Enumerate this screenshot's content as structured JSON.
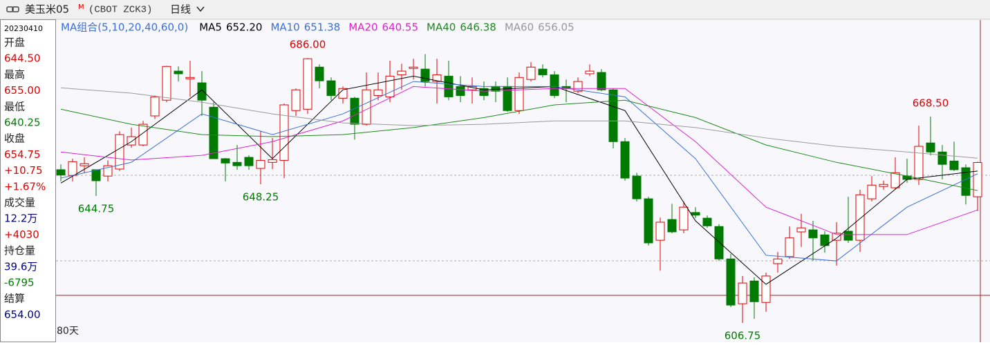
{
  "header": {
    "title": "美玉米05",
    "badge": "M",
    "code": "(CBOT ZCK3)",
    "period": "日线"
  },
  "quote": {
    "date": "20230410",
    "items": [
      {
        "text": "开盘"
      },
      {
        "text": "644.50",
        "color": "#e00000"
      },
      {
        "text": "最高"
      },
      {
        "text": "655.00",
        "color": "#e00000"
      },
      {
        "text": "最低"
      },
      {
        "text": "640.25",
        "color": "#008000"
      },
      {
        "text": "收盘"
      },
      {
        "text": "654.75",
        "color": "#e00000"
      },
      {
        "text": "+10.75",
        "color": "#e00000"
      },
      {
        "text": "+1.67%",
        "color": "#e00000"
      },
      {
        "text": "成交量"
      },
      {
        "text": "12.2万",
        "color": "#000080"
      },
      {
        "text": "+4030",
        "color": "#e00000"
      },
      {
        "text": "持仓量"
      },
      {
        "text": "39.6万",
        "color": "#000080"
      },
      {
        "text": "-6795",
        "color": "#008000"
      },
      {
        "text": "结算"
      },
      {
        "text": "654.00",
        "color": "#000080"
      }
    ]
  },
  "chart_data": {
    "type": "candlestick",
    "legend_title": "MA组合(5,10,20,40,60,0)",
    "span_label": "80天",
    "ylim": [
      601.8,
      697.6
    ],
    "up_color": "#e00000",
    "down_color": "#007a00",
    "open": [
      652.6,
      650.9,
      653.8,
      652.6,
      650.7,
      652.8,
      660.0,
      660.0,
      668.7,
      673.4,
      682.1,
      679.8,
      678.6,
      671.3,
      655.9,
      654.8,
      656.3,
      653.0,
      654.8,
      655.4,
      670.3,
      670.7,
      683.3,
      679.2,
      674.0,
      674.0,
      666.2,
      674.8,
      674.4,
      681.0,
      682.9,
      682.7,
      679.0,
      680.6,
      677.5,
      676.5,
      676.9,
      677.5,
      677.5,
      670.3,
      679.6,
      682.7,
      681.0,
      677.5,
      676.1,
      681.3,
      681.7,
      676.5,
      661.0,
      650.7,
      643.9,
      631.5,
      637.7,
      634.6,
      639.8,
      638.1,
      635.6,
      625.9,
      612.5,
      619.3,
      612.9,
      624.5,
      626.6,
      634.0,
      634.6,
      633.1,
      631.5,
      634.2,
      631.5,
      643.9,
      647.6,
      647.2,
      650.7,
      649.7,
      660.6,
      657.9,
      655.2,
      653.2,
      644.5
    ],
    "high": [
      654.2,
      655.9,
      656.3,
      652.6,
      655.4,
      664.1,
      665.2,
      667.2,
      674.8,
      683.7,
      683.5,
      685.2,
      682.1,
      672.8,
      656.1,
      660.0,
      656.9,
      664.1,
      662.1,
      672.4,
      676.9,
      686.0,
      684.1,
      680.2,
      677.5,
      674.4,
      681.7,
      681.7,
      685.2,
      684.3,
      685.8,
      687.2,
      685.8,
      685.2,
      680.6,
      680.2,
      679.0,
      679.0,
      680.2,
      681.7,
      684.8,
      684.1,
      682.1,
      679.6,
      680.2,
      684.1,
      682.7,
      676.9,
      662.1,
      651.7,
      644.5,
      638.3,
      642.4,
      643.1,
      641.4,
      638.9,
      636.3,
      627.4,
      620.8,
      620.4,
      621.8,
      628.0,
      635.6,
      639.4,
      637.3,
      634.2,
      636.9,
      644.5,
      646.6,
      650.7,
      649.3,
      656.3,
      655.9,
      665.8,
      668.5,
      660.0,
      661.0,
      654.2,
      655.0
    ],
    "low": [
      649.1,
      649.1,
      651.7,
      644.75,
      649.1,
      652.2,
      659.2,
      659.6,
      667.8,
      672.8,
      679.0,
      674.4,
      668.7,
      655.9,
      649.1,
      652.6,
      652.6,
      648.25,
      652.8,
      650.1,
      668.7,
      669.3,
      676.9,
      673.4,
      672.4,
      661.6,
      665.8,
      673.4,
      672.8,
      676.5,
      679.6,
      677.5,
      672.4,
      673.4,
      672.8,
      672.4,
      673.4,
      672.8,
      669.9,
      669.3,
      679.0,
      680.2,
      674.0,
      672.8,
      675.5,
      680.6,
      676.1,
      659.0,
      649.3,
      643.1,
      629.9,
      622.4,
      633.6,
      633.6,
      638.1,
      635.2,
      625.3,
      611.5,
      606.75,
      608.0,
      610.1,
      621.8,
      625.9,
      629.5,
      625.3,
      627.8,
      623.9,
      630.7,
      628.0,
      643.1,
      646.6,
      646.6,
      648.7,
      648.0,
      656.9,
      649.7,
      652.2,
      642.2,
      640.25
    ],
    "close": [
      651.0,
      655.0,
      654.4,
      649.3,
      653.8,
      663.1,
      662.5,
      666.2,
      674.4,
      683.5,
      681.3,
      680.2,
      673.4,
      655.9,
      654.6,
      653.8,
      653.8,
      655.4,
      655.6,
      672.0,
      676.5,
      685.8,
      679.2,
      674.8,
      676.9,
      666.2,
      676.5,
      676.5,
      680.6,
      682.1,
      683.3,
      679.0,
      681.0,
      674.4,
      674.8,
      677.5,
      674.8,
      676.1,
      670.3,
      680.2,
      683.3,
      681.0,
      674.8,
      676.9,
      679.0,
      682.1,
      676.5,
      661.0,
      650.1,
      643.9,
      630.7,
      636.9,
      634.0,
      641.4,
      639.0,
      635.8,
      625.9,
      612.1,
      618.7,
      613.1,
      620.8,
      625.9,
      632.2,
      635.2,
      632.2,
      629.9,
      633.6,
      631.5,
      645.1,
      648.0,
      648.2,
      651.7,
      649.7,
      659.6,
      657.9,
      654.2,
      652.6,
      644.9,
      654.75
    ],
    "series": [
      {
        "name": "MA5",
        "legend_value": "652.20",
        "color": "#000000",
        "x": [
          0,
          6,
          12,
          18,
          24,
          30,
          36,
          42,
          48,
          54,
          60,
          66,
          72,
          78
        ],
        "values": [
          648.6,
          661.0,
          676.5,
          655.9,
          676.5,
          680.6,
          676.5,
          677.5,
          670.3,
          637.3,
          618.3,
          632.1,
          649.7,
          652.2
        ]
      },
      {
        "name": "MA10",
        "legend_value": "651.38",
        "color": "#3a6fd8",
        "x": [
          0,
          6,
          12,
          18,
          24,
          30,
          36,
          42,
          48,
          54,
          60,
          66,
          72,
          78
        ],
        "values": [
          650.1,
          654.8,
          669.3,
          663.1,
          669.3,
          679.0,
          677.5,
          677.5,
          674.4,
          655.9,
          627.0,
          625.3,
          641.4,
          651.38
        ]
      },
      {
        "name": "MA20",
        "legend_value": "640.55",
        "color": "#e020d0",
        "x": [
          0,
          6,
          12,
          18,
          24,
          30,
          36,
          42,
          48,
          54,
          60,
          66,
          72,
          78
        ],
        "values": [
          657.9,
          655.5,
          656.9,
          661.0,
          667.2,
          677.5,
          676.1,
          676.9,
          676.9,
          661.0,
          641.4,
          633.2,
          633.2,
          640.55
        ]
      },
      {
        "name": "MA40",
        "legend_value": "646.38",
        "color": "#1a8a1a",
        "x": [
          0,
          6,
          12,
          18,
          24,
          30,
          36,
          42,
          48,
          54,
          60,
          66,
          72,
          78
        ],
        "values": [
          670.7,
          666.2,
          663.1,
          662.5,
          663.1,
          665.2,
          668.2,
          672.0,
          673.4,
          668.2,
          660.0,
          654.8,
          650.7,
          646.38
        ]
      },
      {
        "name": "MA60",
        "legend_value": "656.05",
        "color": "#999999",
        "x": [
          0,
          6,
          12,
          18,
          24,
          30,
          36,
          42,
          48,
          54,
          60,
          66,
          72,
          78
        ],
        "values": [
          677.1,
          675.5,
          672.8,
          669.3,
          666.6,
          665.8,
          666.2,
          667.2,
          667.2,
          665.2,
          662.1,
          659.6,
          657.9,
          656.05
        ]
      }
    ],
    "annotations": [
      {
        "label": "686.00",
        "value": 686.0,
        "index": 21,
        "kind": "high",
        "color": "#e00000"
      },
      {
        "label": "644.75",
        "value": 644.75,
        "index": 3,
        "kind": "low",
        "color": "#007a00"
      },
      {
        "label": "648.25",
        "value": 648.25,
        "index": 17,
        "kind": "low",
        "color": "#007a00"
      },
      {
        "label": "606.75",
        "value": 606.75,
        "index": 58,
        "kind": "low",
        "color": "#007a00"
      },
      {
        "label": "668.50",
        "value": 668.5,
        "index": 74,
        "kind": "high",
        "color": "#e00000"
      }
    ]
  }
}
